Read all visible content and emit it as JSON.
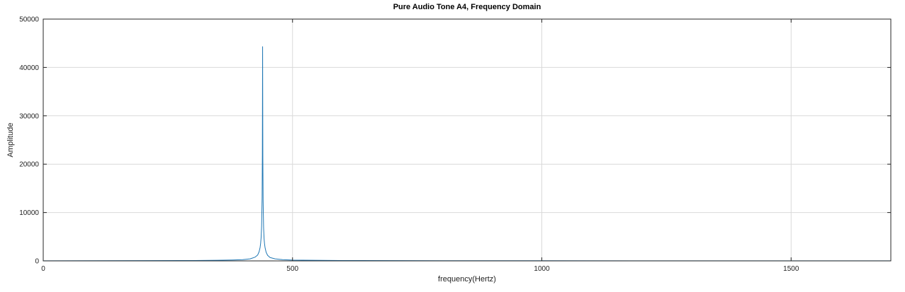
{
  "chart_data": {
    "type": "line",
    "title": "Pure Audio Tone A4, Frequency Domain",
    "xlabel": "frequency(Hertz)",
    "ylabel": "Amplitude",
    "xlim": [
      0,
      1700
    ],
    "ylim": [
      0,
      50000
    ],
    "xticks": [
      0,
      500,
      1000,
      1500
    ],
    "yticks": [
      0,
      10000,
      20000,
      30000,
      40000,
      50000
    ],
    "grid": true,
    "line_color": "#1f77b4",
    "series": [
      {
        "x": [
          0,
          100,
          200,
          300,
          350,
          380,
          400,
          415,
          425,
          430,
          433,
          435,
          436,
          437,
          438,
          439,
          439.5,
          440,
          440.5,
          441,
          442,
          443,
          444,
          445,
          447,
          450,
          455,
          465,
          480,
          500,
          600,
          800,
          1000,
          1200,
          1500,
          1700
        ],
        "y": [
          25,
          35,
          50,
          80,
          120,
          180,
          260,
          420,
          780,
          1200,
          1900,
          2800,
          3600,
          4800,
          7200,
          13000,
          22000,
          44300,
          21000,
          12500,
          6800,
          4500,
          3400,
          2700,
          1800,
          1150,
          700,
          420,
          260,
          170,
          80,
          45,
          30,
          25,
          20,
          18
        ]
      }
    ]
  }
}
